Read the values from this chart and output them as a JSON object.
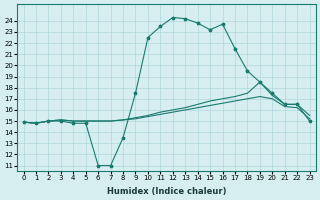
{
  "xlabel": "Humidex (Indice chaleur)",
  "ylabel": "",
  "background_color": "#d6eef0",
  "grid_color": "#b0d8dc",
  "line_color": "#1a7a6e",
  "xlim": [
    -0.5,
    23.5
  ],
  "ylim": [
    11,
    25
  ],
  "yticks": [
    11,
    12,
    13,
    14,
    15,
    16,
    17,
    18,
    19,
    20,
    21,
    22,
    23,
    24
  ],
  "xticks": [
    0,
    1,
    2,
    3,
    4,
    5,
    6,
    7,
    8,
    9,
    10,
    11,
    12,
    13,
    14,
    15,
    16,
    17,
    18,
    19,
    20,
    21,
    22,
    23
  ],
  "series1_x": [
    0,
    1,
    2,
    3,
    4,
    5,
    6,
    7,
    8,
    9,
    10,
    11,
    12,
    13,
    14,
    15,
    16,
    17,
    18,
    19,
    20,
    21,
    22,
    23
  ],
  "series1_y": [
    14.9,
    14.8,
    15.0,
    15.0,
    14.8,
    14.8,
    11.0,
    11.0,
    13.5,
    17.5,
    22.5,
    23.5,
    24.3,
    24.2,
    23.8,
    23.2,
    23.7,
    21.5,
    19.5,
    18.5,
    17.5,
    16.5,
    16.5,
    15.0
  ],
  "series2_x": [
    0,
    1,
    2,
    3,
    4,
    5,
    6,
    7,
    8,
    9,
    10,
    11,
    12,
    13,
    14,
    15,
    16,
    17,
    18,
    19,
    20,
    21,
    22,
    23
  ],
  "series2_y": [
    14.9,
    14.8,
    15.0,
    15.1,
    15.0,
    15.0,
    15.0,
    15.0,
    15.1,
    15.3,
    15.5,
    15.8,
    16.0,
    16.2,
    16.5,
    16.8,
    17.0,
    17.2,
    17.5,
    18.5,
    17.3,
    16.5,
    16.5,
    15.5
  ],
  "series3_x": [
    0,
    1,
    2,
    3,
    4,
    5,
    6,
    7,
    8,
    9,
    10,
    11,
    12,
    13,
    14,
    15,
    16,
    17,
    18,
    19,
    20,
    21,
    22,
    23
  ],
  "series3_y": [
    14.9,
    14.8,
    15.0,
    15.1,
    15.0,
    15.0,
    15.0,
    15.0,
    15.1,
    15.2,
    15.4,
    15.6,
    15.8,
    16.0,
    16.2,
    16.4,
    16.6,
    16.8,
    17.0,
    17.2,
    17.0,
    16.3,
    16.2,
    15.2
  ]
}
